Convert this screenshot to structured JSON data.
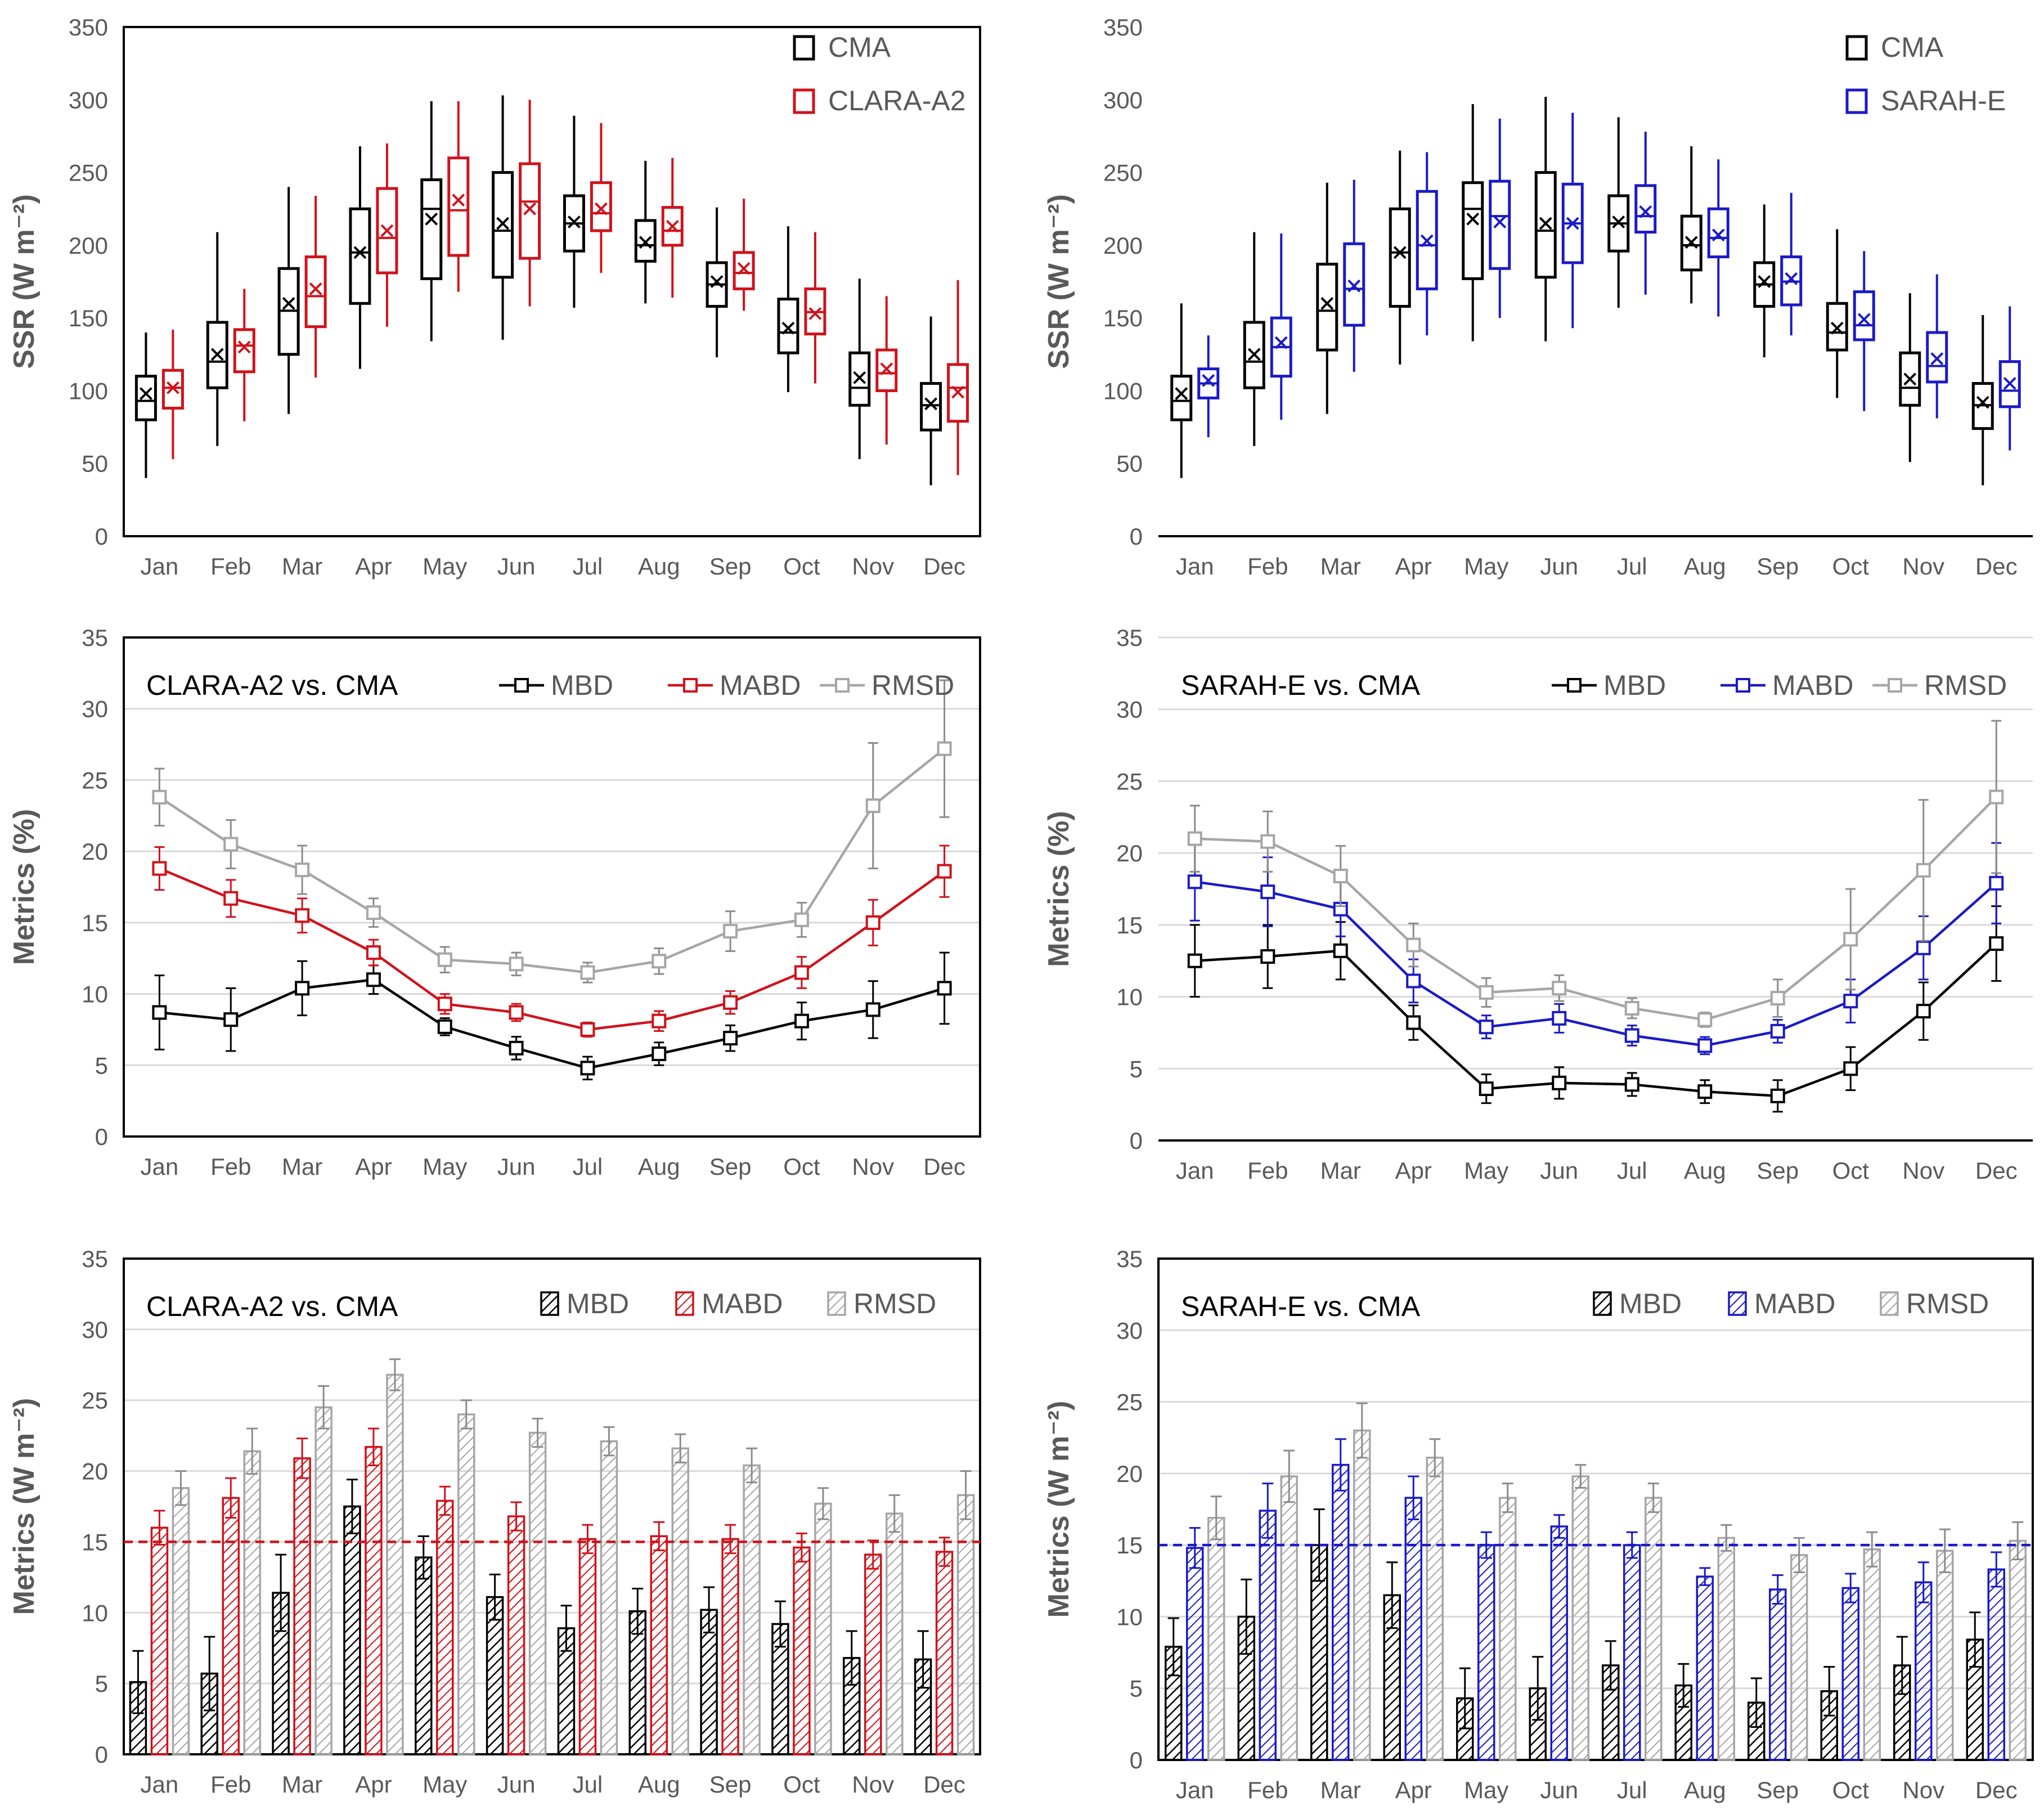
{
  "months": [
    "Jan",
    "Feb",
    "Mar",
    "Apr",
    "May",
    "Jun",
    "Jul",
    "Aug",
    "Sep",
    "Oct",
    "Nov",
    "Dec"
  ],
  "colors": {
    "cma": "#000000",
    "clara": "#d0121b",
    "sarah": "#1a1ac6",
    "rmsd": "#a6a6a6",
    "grid": "#d9d9d9",
    "axis": "#595959"
  },
  "chart_data": [
    {
      "type": "box",
      "id": "box-clara",
      "title": "",
      "ylabel": "SSR (W m⁻²)",
      "ylim": [
        0,
        350
      ],
      "yticks": [
        0,
        50,
        100,
        150,
        200,
        250,
        300,
        350
      ],
      "grid": false,
      "legend_position": "top-right",
      "series": [
        {
          "name": "CMA",
          "color": "#000000",
          "boxes": [
            {
              "min": 40,
              "q1": 80,
              "median": 93,
              "mean": 98,
              "q3": 110,
              "max": 140
            },
            {
              "min": 62,
              "q1": 102,
              "median": 120,
              "mean": 125,
              "q3": 147,
              "max": 209
            },
            {
              "min": 84,
              "q1": 125,
              "median": 155,
              "mean": 160,
              "q3": 184,
              "max": 240
            },
            {
              "min": 115,
              "q1": 160,
              "median": 195,
              "mean": 195,
              "q3": 225,
              "max": 268
            },
            {
              "min": 134,
              "q1": 177,
              "median": 225,
              "mean": 218,
              "q3": 245,
              "max": 299
            },
            {
              "min": 135,
              "q1": 178,
              "median": 210,
              "mean": 215,
              "q3": 250,
              "max": 303
            },
            {
              "min": 157,
              "q1": 196,
              "median": 215,
              "mean": 216,
              "q3": 234,
              "max": 289
            },
            {
              "min": 160,
              "q1": 189,
              "median": 200,
              "mean": 202,
              "q3": 217,
              "max": 258
            },
            {
              "min": 123,
              "q1": 158,
              "median": 173,
              "mean": 175,
              "q3": 188,
              "max": 226
            },
            {
              "min": 99,
              "q1": 126,
              "median": 140,
              "mean": 143,
              "q3": 163,
              "max": 213
            },
            {
              "min": 53,
              "q1": 90,
              "median": 102,
              "mean": 109,
              "q3": 126,
              "max": 177
            },
            {
              "min": 35,
              "q1": 73,
              "median": 90,
              "mean": 91,
              "q3": 105,
              "max": 151
            }
          ]
        },
        {
          "name": "CLARA-A2",
          "color": "#d0121b",
          "boxes": [
            {
              "min": 53,
              "q1": 88,
              "median": 102,
              "mean": 102,
              "q3": 114,
              "max": 142
            },
            {
              "min": 79,
              "q1": 113,
              "median": 131,
              "mean": 130,
              "q3": 142,
              "max": 170
            },
            {
              "min": 109,
              "q1": 144,
              "median": 165,
              "mean": 170,
              "q3": 192,
              "max": 234
            },
            {
              "min": 144,
              "q1": 181,
              "median": 205,
              "mean": 210,
              "q3": 239,
              "max": 270
            },
            {
              "min": 168,
              "q1": 193,
              "median": 224,
              "mean": 231,
              "q3": 260,
              "max": 299
            },
            {
              "min": 158,
              "q1": 191,
              "median": 230,
              "mean": 225,
              "q3": 256,
              "max": 300
            },
            {
              "min": 181,
              "q1": 210,
              "median": 222,
              "mean": 225,
              "q3": 243,
              "max": 284
            },
            {
              "min": 164,
              "q1": 200,
              "median": 210,
              "mean": 213,
              "q3": 226,
              "max": 260
            },
            {
              "min": 155,
              "q1": 170,
              "median": 181,
              "mean": 184,
              "q3": 195,
              "max": 232
            },
            {
              "min": 105,
              "q1": 139,
              "median": 154,
              "mean": 153,
              "q3": 170,
              "max": 209
            },
            {
              "min": 63,
              "q1": 100,
              "median": 112,
              "mean": 115,
              "q3": 128,
              "max": 165
            },
            {
              "min": 42,
              "q1": 79,
              "median": 102,
              "mean": 99,
              "q3": 118,
              "max": 176
            }
          ]
        }
      ]
    },
    {
      "type": "box",
      "id": "box-sarah",
      "title": "",
      "ylabel": "SSR (W m⁻²)",
      "ylim": [
        0,
        350
      ],
      "yticks": [
        0,
        50,
        100,
        150,
        200,
        250,
        300,
        350
      ],
      "grid": false,
      "legend_position": "top-right",
      "series": [
        {
          "name": "CMA",
          "color": "#000000",
          "boxes": [
            {
              "min": 40,
              "q1": 80,
              "median": 93,
              "mean": 98,
              "q3": 110,
              "max": 160
            },
            {
              "min": 62,
              "q1": 102,
              "median": 120,
              "mean": 125,
              "q3": 147,
              "max": 209
            },
            {
              "min": 84,
              "q1": 128,
              "median": 155,
              "mean": 160,
              "q3": 187,
              "max": 243
            },
            {
              "min": 118,
              "q1": 158,
              "median": 195,
              "mean": 195,
              "q3": 225,
              "max": 265
            },
            {
              "min": 134,
              "q1": 177,
              "median": 225,
              "mean": 218,
              "q3": 243,
              "max": 297
            },
            {
              "min": 134,
              "q1": 178,
              "median": 210,
              "mean": 215,
              "q3": 250,
              "max": 302
            },
            {
              "min": 157,
              "q1": 196,
              "median": 215,
              "mean": 216,
              "q3": 234,
              "max": 288
            },
            {
              "min": 160,
              "q1": 183,
              "median": 200,
              "mean": 202,
              "q3": 220,
              "max": 268
            },
            {
              "min": 123,
              "q1": 158,
              "median": 173,
              "mean": 175,
              "q3": 188,
              "max": 228
            },
            {
              "min": 95,
              "q1": 128,
              "median": 140,
              "mean": 143,
              "q3": 160,
              "max": 211
            },
            {
              "min": 51,
              "q1": 90,
              "median": 102,
              "mean": 108,
              "q3": 126,
              "max": 167
            },
            {
              "min": 35,
              "q1": 74,
              "median": 90,
              "mean": 92,
              "q3": 105,
              "max": 152
            }
          ]
        },
        {
          "name": "SARAH-E",
          "color": "#1a1ac6",
          "boxes": [
            {
              "min": 68,
              "q1": 95,
              "median": 105,
              "mean": 107,
              "q3": 115,
              "max": 138
            },
            {
              "min": 80,
              "q1": 110,
              "median": 130,
              "mean": 133,
              "q3": 150,
              "max": 208
            },
            {
              "min": 113,
              "q1": 145,
              "median": 170,
              "mean": 172,
              "q3": 201,
              "max": 245
            },
            {
              "min": 138,
              "q1": 170,
              "median": 200,
              "mean": 203,
              "q3": 237,
              "max": 264
            },
            {
              "min": 150,
              "q1": 184,
              "median": 220,
              "mean": 216,
              "q3": 244,
              "max": 287
            },
            {
              "min": 143,
              "q1": 188,
              "median": 215,
              "mean": 215,
              "q3": 242,
              "max": 291
            },
            {
              "min": 166,
              "q1": 209,
              "median": 220,
              "mean": 223,
              "q3": 241,
              "max": 278
            },
            {
              "min": 151,
              "q1": 192,
              "median": 205,
              "mean": 207,
              "q3": 225,
              "max": 259
            },
            {
              "min": 138,
              "q1": 159,
              "median": 175,
              "mean": 177,
              "q3": 192,
              "max": 236
            },
            {
              "min": 86,
              "q1": 135,
              "median": 145,
              "mean": 149,
              "q3": 168,
              "max": 196
            },
            {
              "min": 81,
              "q1": 106,
              "median": 117,
              "mean": 122,
              "q3": 140,
              "max": 180
            },
            {
              "min": 59,
              "q1": 89,
              "median": 100,
              "mean": 105,
              "q3": 120,
              "max": 158
            }
          ]
        }
      ]
    },
    {
      "type": "line",
      "id": "line-clara",
      "title": "CLARA-A2 vs. CMA",
      "ylabel": "Metrics (%)",
      "ylim": [
        0,
        35
      ],
      "yticks": [
        0,
        5,
        10,
        15,
        20,
        25,
        30,
        35
      ],
      "grid": true,
      "legend_position": "top-right",
      "series": [
        {
          "name": "MBD",
          "color": "#000000",
          "values": [
            8.7,
            8.2,
            10.4,
            11.0,
            7.7,
            6.2,
            4.8,
            5.8,
            6.9,
            8.1,
            8.9,
            10.4
          ],
          "errors": [
            2.6,
            2.2,
            1.9,
            1.0,
            0.6,
            0.8,
            0.8,
            0.8,
            0.9,
            1.3,
            2.0,
            2.5
          ]
        },
        {
          "name": "MABD",
          "color": "#d0121b",
          "values": [
            18.8,
            16.7,
            15.5,
            12.9,
            9.3,
            8.7,
            7.5,
            8.1,
            9.4,
            11.5,
            15.0,
            18.6
          ],
          "errors": [
            1.5,
            1.3,
            1.2,
            0.9,
            0.7,
            0.6,
            0.5,
            0.7,
            0.8,
            1.1,
            1.6,
            1.8
          ]
        },
        {
          "name": "RMSD",
          "color": "#a6a6a6",
          "values": [
            23.8,
            20.5,
            18.7,
            15.7,
            12.4,
            12.1,
            11.5,
            12.3,
            14.4,
            15.2,
            23.2,
            27.2
          ],
          "errors": [
            2.0,
            1.7,
            1.7,
            1.0,
            0.9,
            0.8,
            0.7,
            0.9,
            1.4,
            1.2,
            4.4,
            4.8
          ]
        }
      ]
    },
    {
      "type": "line",
      "id": "line-sarah",
      "title": "SARAH-E vs. CMA",
      "ylabel": "Metrics (%)",
      "ylim": [
        0,
        35
      ],
      "yticks": [
        0,
        5,
        10,
        15,
        20,
        25,
        30,
        35
      ],
      "grid": true,
      "legend_position": "top-right",
      "series": [
        {
          "name": "MBD",
          "color": "#000000",
          "values": [
            12.5,
            12.8,
            13.2,
            8.2,
            3.6,
            4.0,
            3.9,
            3.4,
            3.1,
            5.0,
            9.0,
            13.7
          ],
          "errors": [
            2.5,
            2.2,
            2.0,
            1.2,
            1.0,
            1.1,
            0.8,
            0.8,
            1.1,
            1.5,
            2.0,
            2.6
          ]
        },
        {
          "name": "MABD",
          "color": "#1a1ac6",
          "values": [
            18.0,
            17.3,
            16.1,
            11.1,
            7.9,
            8.5,
            7.3,
            6.6,
            7.6,
            9.7,
            13.4,
            17.9
          ],
          "errors": [
            2.7,
            2.4,
            1.9,
            1.5,
            0.8,
            1.0,
            0.7,
            0.6,
            0.8,
            1.5,
            2.2,
            2.8
          ]
        },
        {
          "name": "RMSD",
          "color": "#a6a6a6",
          "values": [
            21.0,
            20.8,
            18.4,
            13.6,
            10.3,
            10.6,
            9.2,
            8.4,
            9.9,
            14.0,
            18.8,
            23.9
          ],
          "errors": [
            2.3,
            2.1,
            2.1,
            1.5,
            1.0,
            0.9,
            0.7,
            0.5,
            1.3,
            3.5,
            4.9,
            5.3
          ]
        }
      ]
    },
    {
      "type": "bar",
      "id": "bar-clara",
      "title": "CLARA-A2 vs. CMA",
      "ylabel": "Metrics (W m⁻²)",
      "ylim": [
        0,
        35
      ],
      "yticks": [
        0,
        5,
        10,
        15,
        20,
        25,
        30,
        35
      ],
      "grid": true,
      "legend_position": "top-right",
      "reference_line": 15,
      "reference_color": "#d0121b",
      "series": [
        {
          "name": "MBD",
          "color": "#000000",
          "values": [
            5.1,
            5.7,
            11.4,
            17.5,
            13.9,
            11.1,
            8.9,
            10.1,
            10.2,
            9.2,
            6.8,
            6.7
          ],
          "errors": [
            2.2,
            2.6,
            2.7,
            1.9,
            1.5,
            1.6,
            1.6,
            1.6,
            1.6,
            1.6,
            1.9,
            2.0
          ]
        },
        {
          "name": "MABD",
          "color": "#d0121b",
          "values": [
            16.0,
            18.1,
            20.9,
            21.7,
            17.9,
            16.8,
            15.2,
            15.4,
            15.2,
            14.6,
            14.1,
            14.3
          ],
          "errors": [
            1.2,
            1.4,
            1.4,
            1.3,
            1.0,
            1.0,
            1.0,
            1.0,
            1.0,
            1.0,
            1.0,
            1.0
          ]
        },
        {
          "name": "RMSD",
          "color": "#a6a6a6",
          "values": [
            18.8,
            21.4,
            24.5,
            26.8,
            24.0,
            22.7,
            22.1,
            21.6,
            20.4,
            17.7,
            17.0,
            18.3
          ],
          "errors": [
            1.2,
            1.6,
            1.5,
            1.1,
            1.0,
            1.0,
            1.0,
            1.0,
            1.2,
            1.1,
            1.3,
            1.7
          ]
        }
      ]
    },
    {
      "type": "bar",
      "id": "bar-sarah",
      "title": "SARAH-E vs. CMA",
      "ylabel": "Metrics (W m⁻²)",
      "ylim": [
        0,
        35
      ],
      "yticks": [
        0,
        5,
        10,
        15,
        20,
        25,
        30,
        35
      ],
      "grid": true,
      "legend_position": "top-right",
      "reference_line": 15,
      "reference_color": "#1a1ac6",
      "series": [
        {
          "name": "MBD",
          "color": "#000000",
          "values": [
            7.9,
            10.0,
            15.0,
            11.5,
            4.3,
            5.0,
            6.6,
            5.2,
            4.0,
            4.8,
            6.6,
            8.4
          ],
          "errors": [
            2.0,
            2.6,
            2.5,
            2.3,
            2.1,
            2.2,
            1.7,
            1.5,
            1.7,
            1.7,
            2.0,
            1.9
          ]
        },
        {
          "name": "MABD",
          "color": "#1a1ac6",
          "values": [
            14.8,
            17.4,
            20.6,
            18.3,
            15.0,
            16.3,
            15.0,
            12.8,
            11.9,
            12.0,
            12.4,
            13.3
          ],
          "errors": [
            1.4,
            1.9,
            1.8,
            1.5,
            0.9,
            0.8,
            0.9,
            0.6,
            1.0,
            1.0,
            1.4,
            1.2
          ]
        },
        {
          "name": "RMSD",
          "color": "#a6a6a6",
          "values": [
            16.9,
            19.8,
            23.0,
            21.1,
            18.3,
            19.8,
            18.3,
            15.5,
            14.3,
            14.7,
            14.6,
            15.3
          ],
          "errors": [
            1.5,
            1.8,
            1.9,
            1.3,
            1.0,
            0.8,
            1.0,
            0.9,
            1.2,
            1.2,
            1.5,
            1.3
          ]
        }
      ]
    }
  ]
}
